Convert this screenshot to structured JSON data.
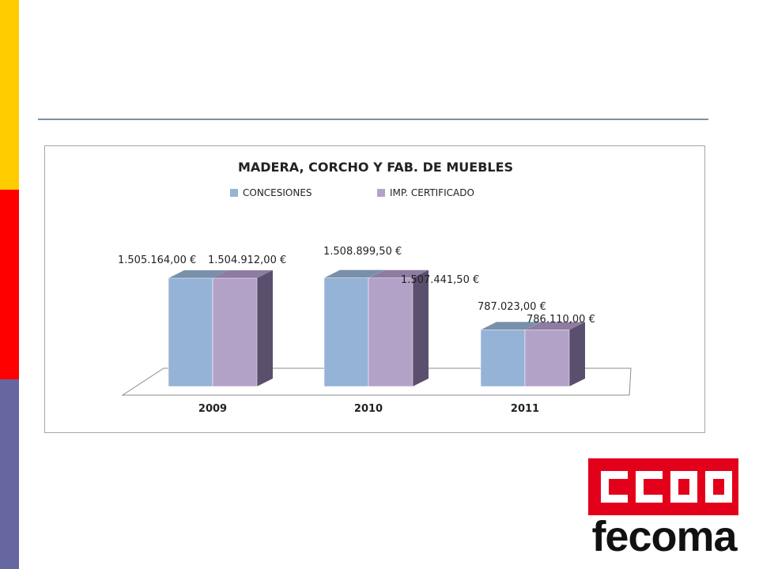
{
  "chart_data": {
    "type": "bar",
    "title": "MADERA, CORCHO Y FAB. DE MUEBLES",
    "categories": [
      "2009",
      "2010",
      "2011"
    ],
    "series": [
      {
        "name": "CONCESIONES",
        "values": [
          1505164.0,
          1508899.5,
          787023.0
        ],
        "labels": [
          "1.505.164,00 €",
          "1.508.899,50 €",
          "787.023,00 €"
        ]
      },
      {
        "name": "IMP. CERTIFICADO",
        "values": [
          1504912.0,
          1507441.5,
          786110.0
        ],
        "labels": [
          "1.504.912,00 €",
          "1.507.441,50 €",
          "786.110,00 €"
        ]
      }
    ],
    "ylim": [
      0,
      1600000
    ],
    "grid": false,
    "legend_position": "top",
    "three_d": true
  },
  "colors": {
    "concesiones": "#95b3d7",
    "imp_certificado": "#b3a2c7",
    "side_yellow": "#ffcc00",
    "side_red": "#ff0000",
    "side_purple": "#6666a0",
    "logo_red": "#e3001b"
  },
  "logo": {
    "word": "fecoma",
    "emblem_text": "CCOO"
  }
}
